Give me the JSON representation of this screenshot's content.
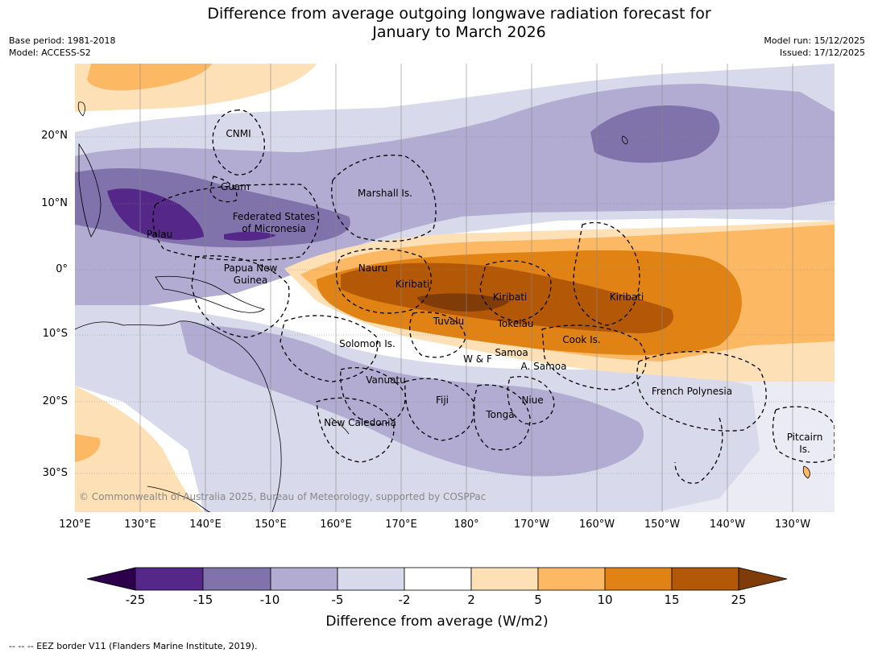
{
  "header": {
    "title_line1": "Difference from average outgoing longwave radiation forecast for",
    "title_line2": "January to March 2026",
    "base_period": "Base period: 1981-2018",
    "model": "Model: ACCESS-S2",
    "model_run": "Model run: 15/12/2025",
    "issued": "Issued: 17/12/2025"
  },
  "map": {
    "longitude_ticks": [
      "120°E",
      "130°E",
      "140°E",
      "150°E",
      "160°E",
      "170°E",
      "180°",
      "170°W",
      "160°W",
      "150°W",
      "140°W",
      "130°W"
    ],
    "latitude_ticks": [
      "20°N",
      "10°N",
      "0°",
      "10°S",
      "20°S",
      "30°S"
    ],
    "labels": {
      "cnmi": "CNMI",
      "guam": "Guam",
      "marshall": "Marshall Is.",
      "fsm1": "Federated States",
      "fsm2": "of Micronesia",
      "palau": "Palau",
      "png1": "Papua New",
      "png2": "Guinea",
      "nauru": "Nauru",
      "kiribati_w": "Kiribati",
      "kiribati_c": "Kiribati",
      "kiribati_e": "Kiribati",
      "tuvalu": "Tuvalu",
      "tokelau": "Tokelau",
      "cook": "Cook Is.",
      "solomon": "Solomon Is.",
      "wf": "W & F",
      "samoa": "Samoa",
      "asamoa": "A. Samoa",
      "vanuatu": "Vanuatu",
      "fiji": "Fiji",
      "niue": "Niue",
      "tonga": "Tonga",
      "newcal": "New Caledonia",
      "frpoly": "French Polynesia",
      "pitcairn1": "Pitcairn",
      "pitcairn2": "Is."
    },
    "copyright": "© Commonwealth of Australia 2025, Bureau of Meteorology, supported by COSPPac"
  },
  "colorbar": {
    "title": "Difference from average (W/m2)",
    "ticks": [
      "-25",
      "-15",
      "-10",
      "-5",
      "-2",
      "2",
      "5",
      "10",
      "15",
      "25"
    ],
    "colors": {
      "below_min": "#2d004b",
      "bins": [
        "#542788",
        "#8073ac",
        "#b2abd2",
        "#d8daeb",
        "#ffffff",
        "#fee0b6",
        "#fdb863",
        "#e08214",
        "#b35806"
      ],
      "above_max": "#7f3b08"
    }
  },
  "footnote": "-- -- -- EEZ border V11 (Flanders Marine Institute, 2019)."
}
